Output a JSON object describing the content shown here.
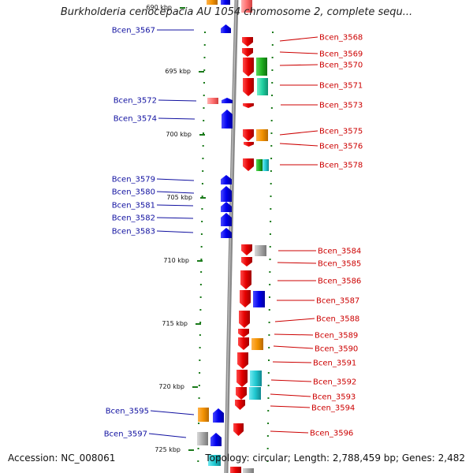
{
  "title": "Burkholderia cenocepacia AU 1054 chromosome 2, complete sequ...",
  "footer": {
    "accession": "Accession: NC_008061",
    "topology": "Topology: circular; Length: 2,788,459 bp; Genes: 2,482"
  },
  "colors": {
    "forward_cds": "#e60000",
    "reverse_cds": "#0000ee",
    "orange_feature": "#f39200",
    "green_feature": "#20b020",
    "teal_feature": "#20d0a0",
    "cyan_feature": "#20c8d0",
    "gray_feature": "#a0a0a0",
    "backbone": "#8a8a8a",
    "tick": "#1a7a1a",
    "left_label": "#1010a0",
    "right_label": "#cc0000"
  },
  "scale_labels": [
    "690 kbp",
    "695 kbp",
    "700 kbp",
    "705 kbp",
    "710 kbp",
    "715 kbp",
    "720 kbp",
    "725 kbp"
  ],
  "left_genes": [
    "Bcen_3567",
    "Bcen_3572",
    "Bcen_3574",
    "Bcen_3579",
    "Bcen_3580",
    "Bcen_3581",
    "Bcen_3582",
    "Bcen_3583",
    "Bcen_3595",
    "Bcen_3597"
  ],
  "right_genes": [
    "Bcen_3568",
    "Bcen_3569",
    "Bcen_3570",
    "Bcen_3571",
    "Bcen_3573",
    "Bcen_3575",
    "Bcen_3576",
    "Bcen_3578",
    "Bcen_3584",
    "Bcen_3585",
    "Bcen_3586",
    "Bcen_3587",
    "Bcen_3588",
    "Bcen_3589",
    "Bcen_3590",
    "Bcen_3591",
    "Bcen_3592",
    "Bcen_3593",
    "Bcen_3594",
    "Bcen_3596"
  ]
}
